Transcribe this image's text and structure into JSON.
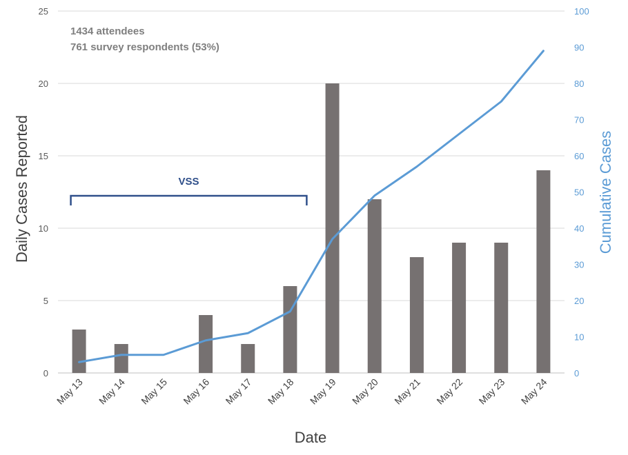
{
  "chart_data": {
    "type": "bar",
    "categories": [
      "May 13",
      "May 14",
      "May 15",
      "May 16",
      "May 17",
      "May 18",
      "May 19",
      "May 20",
      "May 21",
      "May 22",
      "May 23",
      "May 24"
    ],
    "series": [
      {
        "values": [
          3,
          2,
          0,
          4,
          2,
          6,
          20,
          12,
          8,
          9,
          9,
          14
        ],
        "type": "bar",
        "axis": "left",
        "color": "#767171"
      },
      {
        "values": [
          3,
          5,
          5,
          9,
          11,
          17,
          37,
          49,
          57,
          66,
          75,
          89
        ],
        "type": "line",
        "axis": "right",
        "color": "#5b9bd5"
      }
    ],
    "xlabel": "Date",
    "ylabel": "Daily Cases Reported",
    "y2label": "Cumulative Cases",
    "ylim": [
      0,
      25
    ],
    "y2lim": [
      0,
      100
    ],
    "yticks": [
      "0",
      "5",
      "10",
      "15",
      "20",
      "25"
    ],
    "y2ticks": [
      "0",
      "10",
      "20",
      "30",
      "40",
      "50",
      "60",
      "70",
      "80",
      "90",
      "100"
    ],
    "grid": true,
    "annotations": {
      "note_line1": "1434 attendees",
      "note_line2": "761 survey respondents (53%)",
      "bracket_label": "VSS",
      "bracket_range": [
        "May 13",
        "May 18"
      ]
    }
  }
}
